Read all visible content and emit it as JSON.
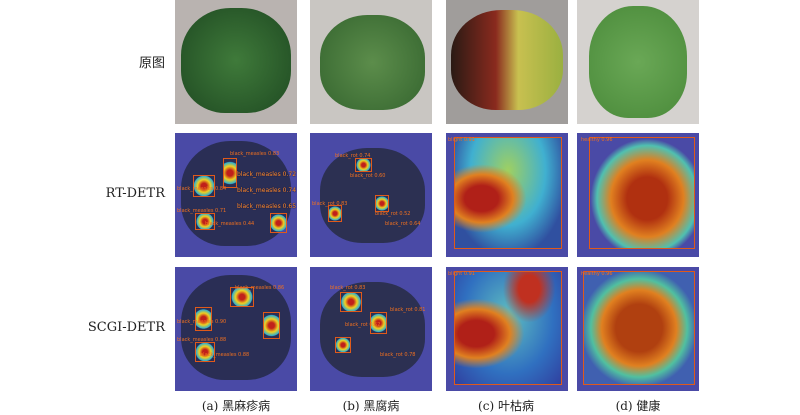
{
  "row_labels": [
    "原图",
    "RT-DETR",
    "SCGI-DETR"
  ],
  "captions": [
    "(a) 黑麻疹病",
    "(b) 黑腐病",
    "(c) 叶枯病",
    "(d) 健康"
  ],
  "detections": {
    "rt_detr": {
      "a": [
        "black_measles 0.83",
        "black_measles 0.72",
        "black_measles 0.84",
        "black_measles 0.74",
        "black_measles 0.65",
        "black_measles 0.71",
        "black_measles 0.44"
      ],
      "b": [
        "black_rot 0.74",
        "black_rot 0.60",
        "black_rot 0.83",
        "black_rot 0.52",
        "black_rot 0.64"
      ],
      "c": [
        "blight 0.91"
      ],
      "d": [
        "healthy 0.96"
      ]
    },
    "scgi_detr": {
      "a": [
        "black_measles 0.86",
        "black_measles 0.88",
        "black_measles 0.90",
        "black_measles 0.88"
      ],
      "b": [
        "black_rot 0.83",
        "black_rot 0.81",
        "black_rot 0.52",
        "black_rot 0.78"
      ],
      "c": [
        "blight 0.91"
      ],
      "d": [
        "healthy 0.96"
      ]
    }
  }
}
